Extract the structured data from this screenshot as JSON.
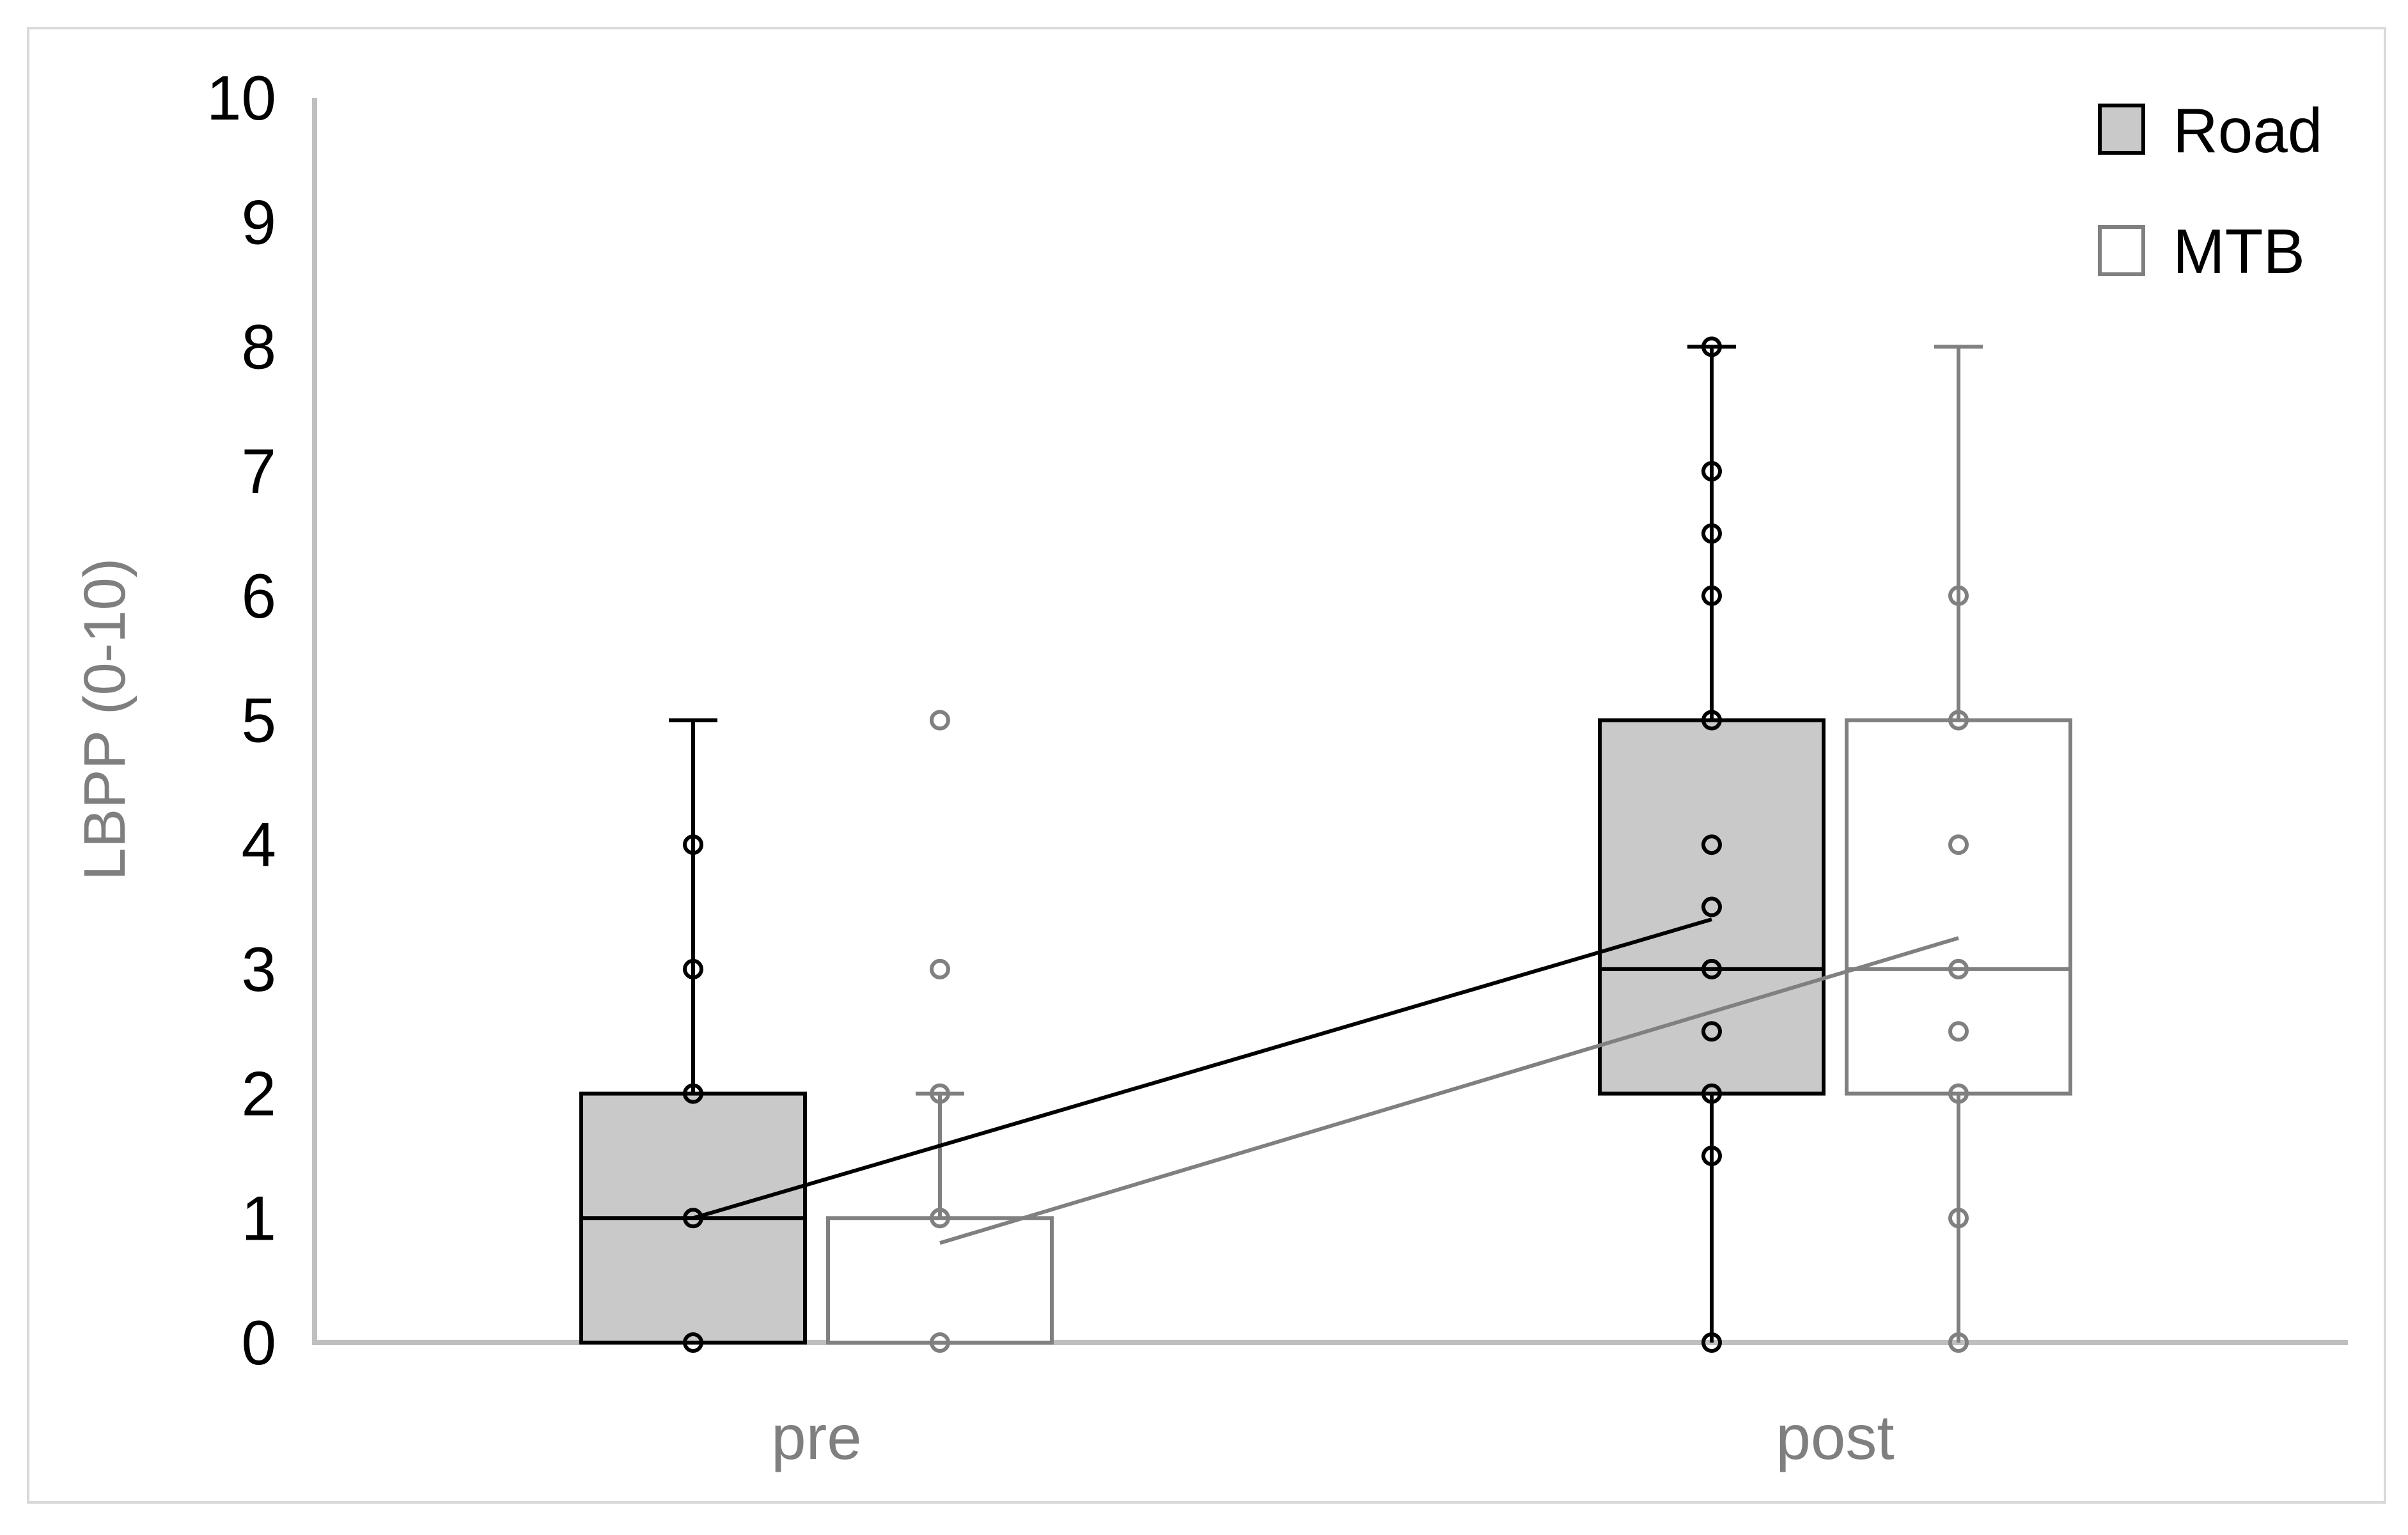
{
  "chart_data": {
    "type": "box",
    "title": "",
    "xlabel": "",
    "ylabel": "LBPP (0-10)",
    "ylim": [
      0,
      10
    ],
    "yticks": [
      "0",
      "1",
      "2",
      "3",
      "4",
      "5",
      "6",
      "7",
      "8",
      "9",
      "10"
    ],
    "categories": [
      "pre",
      "post"
    ],
    "grid": false,
    "legend_position": "top-right",
    "series": [
      {
        "name": "Road",
        "fill": "#c9c9c9",
        "stroke": "#000000",
        "boxes": [
          {
            "category": "pre",
            "min": 0,
            "q1": 0,
            "median": 1,
            "q3": 2,
            "max": 5
          },
          {
            "category": "post",
            "min": 0,
            "q1": 2,
            "median": 3,
            "q3": 5,
            "max": 8
          }
        ],
        "points": [
          {
            "category": "pre",
            "values": [
              0,
              1,
              2,
              3,
              4
            ]
          },
          {
            "category": "post",
            "values": [
              0,
              1.5,
              2,
              2.5,
              3,
              3.5,
              4,
              5,
              6,
              6.5,
              7,
              8
            ]
          }
        ],
        "mean_line": [
          1.0,
          3.4
        ]
      },
      {
        "name": "MTB",
        "fill": "#ffffff",
        "stroke": "#808080",
        "boxes": [
          {
            "category": "pre",
            "min": 0,
            "q1": 0,
            "median": 0,
            "q3": 1,
            "max": 2
          },
          {
            "category": "post",
            "min": 0,
            "q1": 2,
            "median": 3,
            "q3": 5,
            "max": 8
          }
        ],
        "points": [
          {
            "category": "pre",
            "values": [
              0,
              1,
              2,
              3,
              5
            ]
          },
          {
            "category": "post",
            "values": [
              0,
              1,
              2,
              2.5,
              3,
              4,
              5,
              6
            ]
          }
        ],
        "mean_line": [
          0.8,
          3.25
        ]
      }
    ]
  }
}
